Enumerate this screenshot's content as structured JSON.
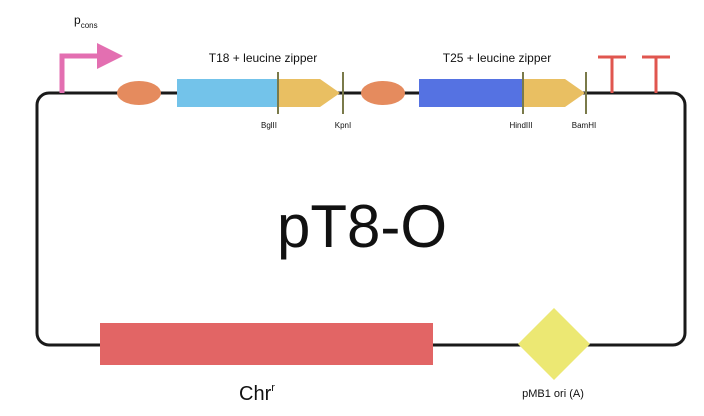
{
  "plasmid": {
    "name": "pT8-O"
  },
  "promoter": {
    "label": "p",
    "subscript": "cons",
    "color": "#e36fb1"
  },
  "rbs": {
    "color": "#e58b5e"
  },
  "cassettes": [
    {
      "label": "T18 + leucine zipper",
      "tag_color": "#73c3ea",
      "zipper_color": "#e9bf62"
    },
    {
      "label": "T25 + leucine zipper",
      "tag_color": "#5572e2",
      "zipper_color": "#e9bf62"
    }
  ],
  "restriction_sites": [
    "BglII",
    "KpnI",
    "HindIII",
    "BamHI"
  ],
  "terminator": {
    "color": "#e0564f"
  },
  "resistance": {
    "label": "Chr",
    "superscript": "r",
    "color": "#e26565"
  },
  "origin": {
    "label": "pMB1 ori (A)",
    "color": "#ece873"
  },
  "backbone_color": "#1a1a1a",
  "marker_color": "#7a7a4a"
}
